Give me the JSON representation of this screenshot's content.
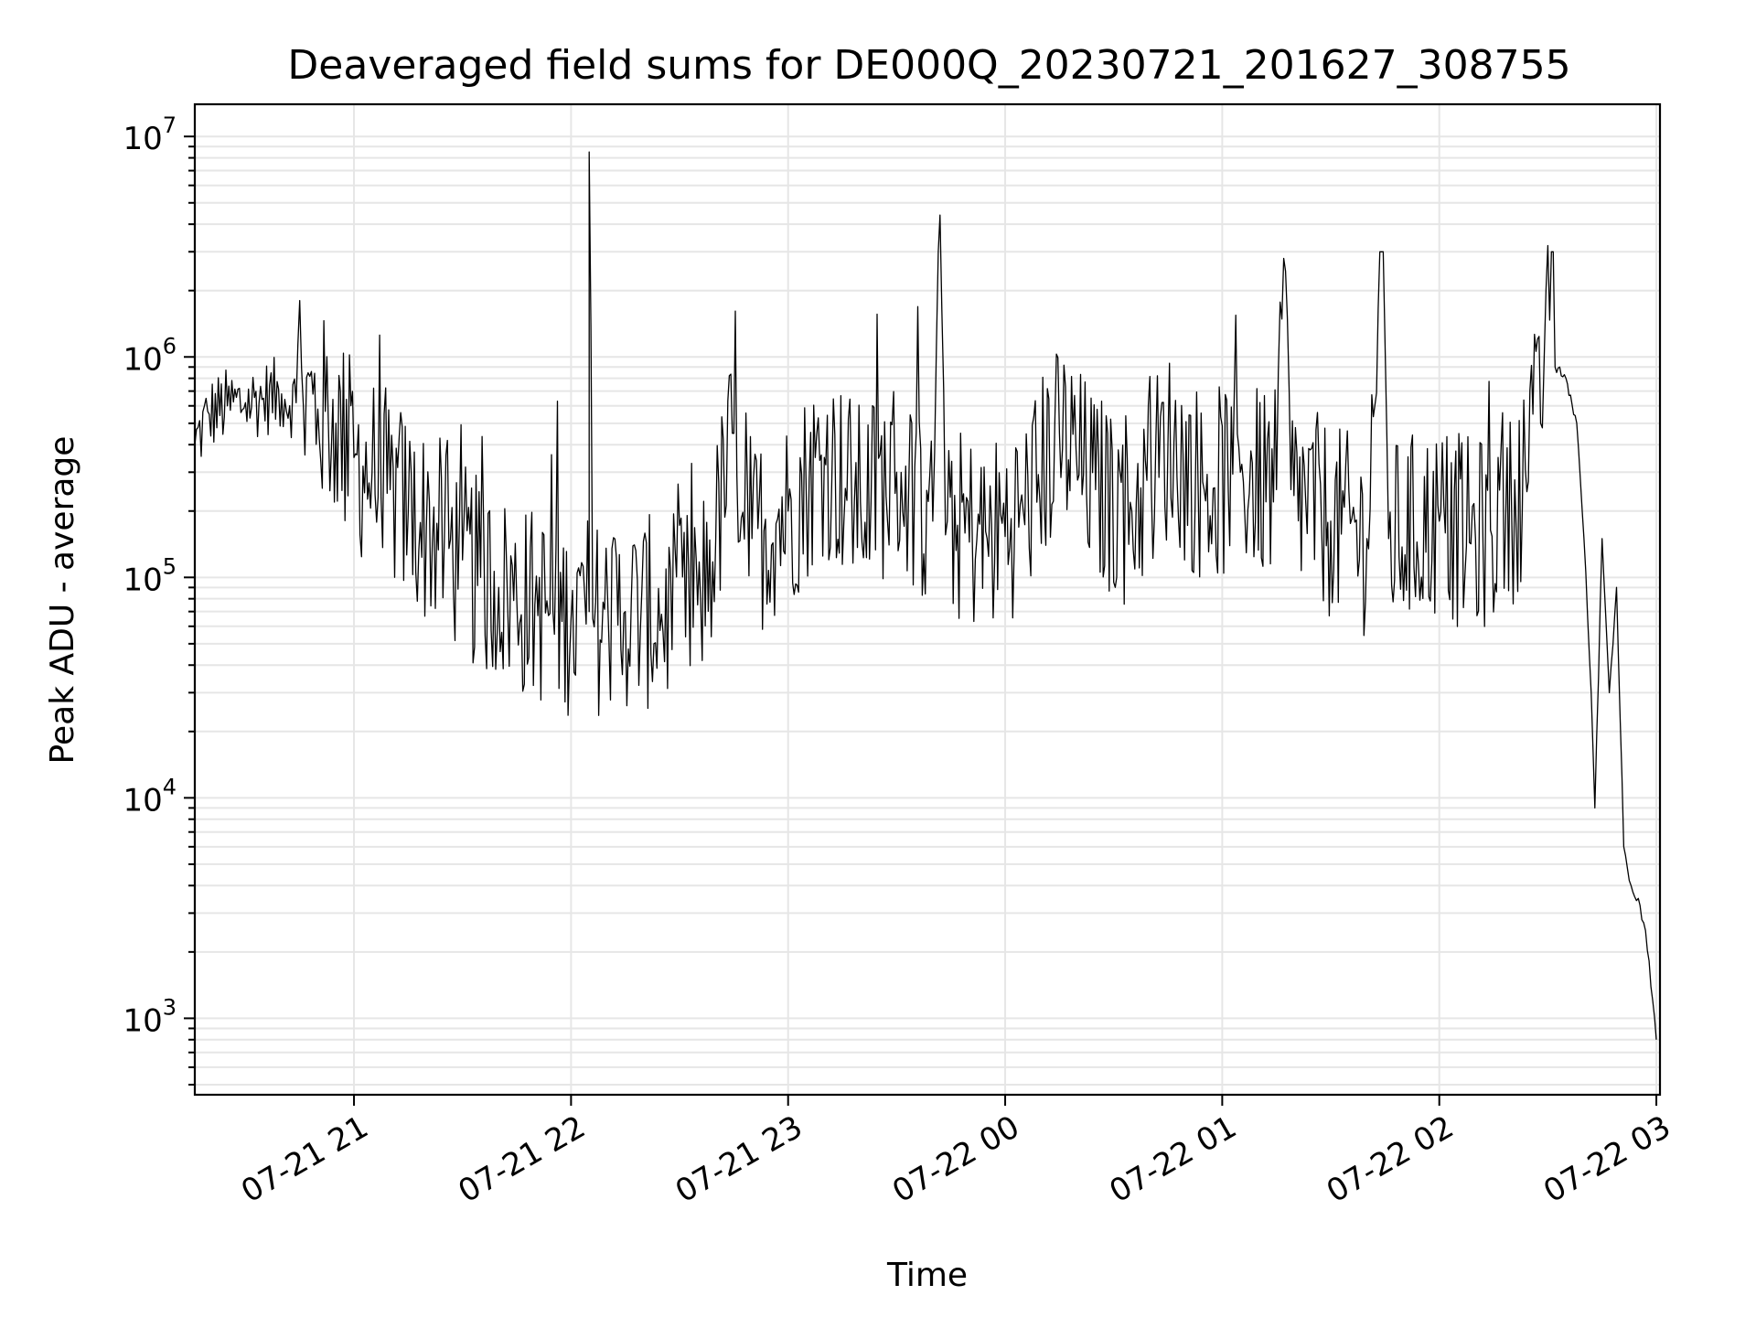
{
  "chart_data": {
    "type": "line",
    "title": "Deaveraged field sums for DE000Q_20230721_201627_308755",
    "xlabel": "Time",
    "ylabel": "Peak ADU - average",
    "yscale": "log",
    "ylim": [
      450,
      14000000
    ],
    "xlim": [
      "2023-07-21 20:16",
      "2023-07-22 03:01"
    ],
    "grid": true,
    "line_color": "#000000",
    "grid_color": "#e6e6e6",
    "x_ticks": [
      {
        "label": "07-21 21",
        "t": "2023-07-21 21:00"
      },
      {
        "label": "07-21 22",
        "t": "2023-07-21 22:00"
      },
      {
        "label": "07-21 23",
        "t": "2023-07-21 23:00"
      },
      {
        "label": "07-22 00",
        "t": "2023-07-22 00:00"
      },
      {
        "label": "07-22 01",
        "t": "2023-07-22 01:00"
      },
      {
        "label": "07-22 02",
        "t": "2023-07-22 02:00"
      },
      {
        "label": "07-22 03",
        "t": "2023-07-22 03:00"
      }
    ],
    "y_ticks": [
      {
        "base": "10",
        "exp": "3",
        "value": 1000
      },
      {
        "base": "10",
        "exp": "4",
        "value": 10000
      },
      {
        "base": "10",
        "exp": "5",
        "value": 100000
      },
      {
        "base": "10",
        "exp": "6",
        "value": 1000000
      },
      {
        "base": "10",
        "exp": "7",
        "value": 10000000
      }
    ],
    "series": [
      {
        "points": [
          [
            "2023-07-21 20:16",
            400000
          ],
          [
            "2023-07-21 20:20",
            550000
          ],
          [
            "2023-07-21 20:25",
            600000
          ],
          [
            "2023-07-21 20:30",
            620000
          ],
          [
            "2023-07-21 20:35",
            650000
          ],
          [
            "2023-07-21 20:40",
            680000
          ],
          [
            "2023-07-21 20:44",
            620000
          ],
          [
            "2023-07-21 20:45",
            1800000
          ],
          [
            "2023-07-21 20:46",
            600000
          ],
          [
            "2023-07-21 20:50",
            580000
          ],
          [
            "2023-07-21 20:55",
            500000
          ],
          [
            "2023-07-21 21:00",
            350000
          ],
          [
            "2023-07-21 21:05",
            300000
          ],
          [
            "2023-07-21 21:10",
            250000
          ],
          [
            "2023-07-21 21:15",
            200000
          ],
          [
            "2023-07-21 21:20",
            170000
          ],
          [
            "2023-07-21 21:25",
            150000
          ],
          [
            "2023-07-21 21:30",
            120000
          ],
          [
            "2023-07-21 21:35",
            100000
          ],
          [
            "2023-07-21 21:40",
            90000
          ],
          [
            "2023-07-21 21:45",
            80000
          ],
          [
            "2023-07-21 21:50",
            75000
          ],
          [
            "2023-07-21 21:55",
            70000
          ],
          [
            "2023-07-21 22:00",
            65000
          ],
          [
            "2023-07-21 22:05",
            70000
          ],
          [
            "2023-07-21 22:05",
            8500000
          ],
          [
            "2023-07-21 22:06",
            65000
          ],
          [
            "2023-07-21 22:15",
            70000
          ],
          [
            "2023-07-21 22:25",
            68000
          ],
          [
            "2023-07-21 22:35",
            75000
          ],
          [
            "2023-07-21 22:40",
            150000
          ],
          [
            "2023-07-21 22:45",
            450000
          ],
          [
            "2023-07-21 22:50",
            150000
          ],
          [
            "2023-07-21 23:00",
            200000
          ],
          [
            "2023-07-21 23:10",
            350000
          ],
          [
            "2023-07-21 23:20",
            220000
          ],
          [
            "2023-07-21 23:30",
            300000
          ],
          [
            "2023-07-21 23:40",
            180000
          ],
          [
            "2023-07-21 23:42",
            4400000
          ],
          [
            "2023-07-21 23:44",
            180000
          ],
          [
            "2023-07-21 23:55",
            150000
          ],
          [
            "2023-07-22 00:05",
            200000
          ],
          [
            "2023-07-22 00:15",
            450000
          ],
          [
            "2023-07-22 00:25",
            250000
          ],
          [
            "2023-07-22 00:35",
            200000
          ],
          [
            "2023-07-22 00:45",
            400000
          ],
          [
            "2023-07-22 00:55",
            250000
          ],
          [
            "2023-07-22 01:05",
            300000
          ],
          [
            "2023-07-22 01:15",
            250000
          ],
          [
            "2023-07-22 01:17",
            2800000
          ],
          [
            "2023-07-22 01:19",
            250000
          ],
          [
            "2023-07-22 01:30",
            180000
          ],
          [
            "2023-07-22 01:40",
            150000
          ],
          [
            "2023-07-22 01:44",
            3000000
          ],
          [
            "2023-07-22 01:46",
            150000
          ],
          [
            "2023-07-22 02:00",
            180000
          ],
          [
            "2023-07-22 02:10",
            150000
          ],
          [
            "2023-07-22 02:20",
            200000
          ],
          [
            "2023-07-22 02:28",
            500000
          ],
          [
            "2023-07-22 02:30",
            3200000
          ],
          [
            "2023-07-22 02:32",
            900000
          ],
          [
            "2023-07-22 02:35",
            800000
          ],
          [
            "2023-07-22 02:38",
            500000
          ],
          [
            "2023-07-22 02:40",
            150000
          ],
          [
            "2023-07-22 02:42",
            30000
          ],
          [
            "2023-07-22 02:43",
            9000
          ],
          [
            "2023-07-22 02:45",
            150000
          ],
          [
            "2023-07-22 02:47",
            30000
          ],
          [
            "2023-07-22 02:49",
            90000
          ],
          [
            "2023-07-22 02:51",
            6000
          ],
          [
            "2023-07-22 02:53",
            4000
          ],
          [
            "2023-07-22 02:55",
            3500
          ],
          [
            "2023-07-22 02:57",
            2500
          ],
          [
            "2023-07-22 02:59",
            1200
          ],
          [
            "2023-07-22 03:00",
            800
          ]
        ]
      }
    ]
  }
}
